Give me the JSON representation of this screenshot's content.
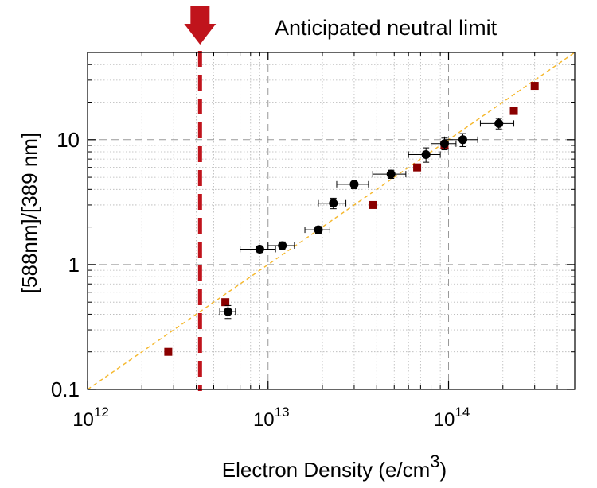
{
  "chart_data": {
    "type": "scatter",
    "title": "",
    "xlabel": "Electron Density (e/cm",
    "xlabel_sup": "3",
    "xlabel_close": ")",
    "ylabel": "[588nm]/[389 nm]",
    "x_scale": "log",
    "y_scale": "log",
    "xlim": [
      1000000000000.0,
      500000000000000.0
    ],
    "ylim": [
      0.1,
      50
    ],
    "grid": true,
    "x_ticks": [
      {
        "value": 1000000000000.0,
        "base": "10",
        "exp": "12"
      },
      {
        "value": 10000000000000.0,
        "base": "10",
        "exp": "13"
      },
      {
        "value": 100000000000000.0,
        "base": "10",
        "exp": "14"
      }
    ],
    "y_ticks": [
      {
        "value": 0.1,
        "label": "0.1"
      },
      {
        "value": 1,
        "label": "1"
      },
      {
        "value": 10,
        "label": "10"
      }
    ],
    "series": [
      {
        "marker": "circle",
        "color": "#000000",
        "points": [
          {
            "x": 6000000000000.0,
            "y": 0.42,
            "xerr": 600000000000.0,
            "yerr": 0.05
          },
          {
            "x": 9000000000000.0,
            "y": 1.33,
            "xerr": 2000000000000.0,
            "yerr": 0.08
          },
          {
            "x": 12000000000000.0,
            "y": 1.42,
            "xerr": 2000000000000.0,
            "yerr": 0.1
          },
          {
            "x": 19000000000000.0,
            "y": 1.9,
            "xerr": 3000000000000.0,
            "yerr": 0.12
          },
          {
            "x": 23000000000000.0,
            "y": 3.1,
            "xerr": 4000000000000.0,
            "yerr": 0.3
          },
          {
            "x": 30000000000000.0,
            "y": 4.4,
            "xerr": 6000000000000.0,
            "yerr": 0.35
          },
          {
            "x": 48000000000000.0,
            "y": 5.3,
            "xerr": 10000000000000.0,
            "yerr": 0.4
          },
          {
            "x": 75000000000000.0,
            "y": 7.6,
            "xerr": 15000000000000.0,
            "yerr": 1.0
          },
          {
            "x": 95000000000000.0,
            "y": 9.3,
            "xerr": 15000000000000.0,
            "yerr": 1.0
          },
          {
            "x": 120000000000000.0,
            "y": 10.0,
            "xerr": 25000000000000.0,
            "yerr": 1.2
          },
          {
            "x": 190000000000000.0,
            "y": 13.5,
            "xerr": 40000000000000.0,
            "yerr": 1.3
          }
        ]
      },
      {
        "marker": "square",
        "color": "#8b0000",
        "points": [
          {
            "x": 2800000000000.0,
            "y": 0.2
          },
          {
            "x": 5800000000000.0,
            "y": 0.5
          },
          {
            "x": 38000000000000.0,
            "y": 3.0
          },
          {
            "x": 67000000000000.0,
            "y": 6.0
          },
          {
            "x": 95000000000000.0,
            "y": 9.0
          },
          {
            "x": 230000000000000.0,
            "y": 17.0
          },
          {
            "x": 300000000000000.0,
            "y": 27.0
          }
        ]
      }
    ],
    "fit_line": {
      "from": {
        "x": 1000000000000.0,
        "y": 0.1
      },
      "to": {
        "x": 500000000000000.0,
        "y": 50
      },
      "color": "#f5b82e",
      "style": "dashed"
    },
    "limit": {
      "x": 4200000000000.0,
      "label": "Anticipated neutral limit",
      "color": "#c0141c"
    }
  }
}
